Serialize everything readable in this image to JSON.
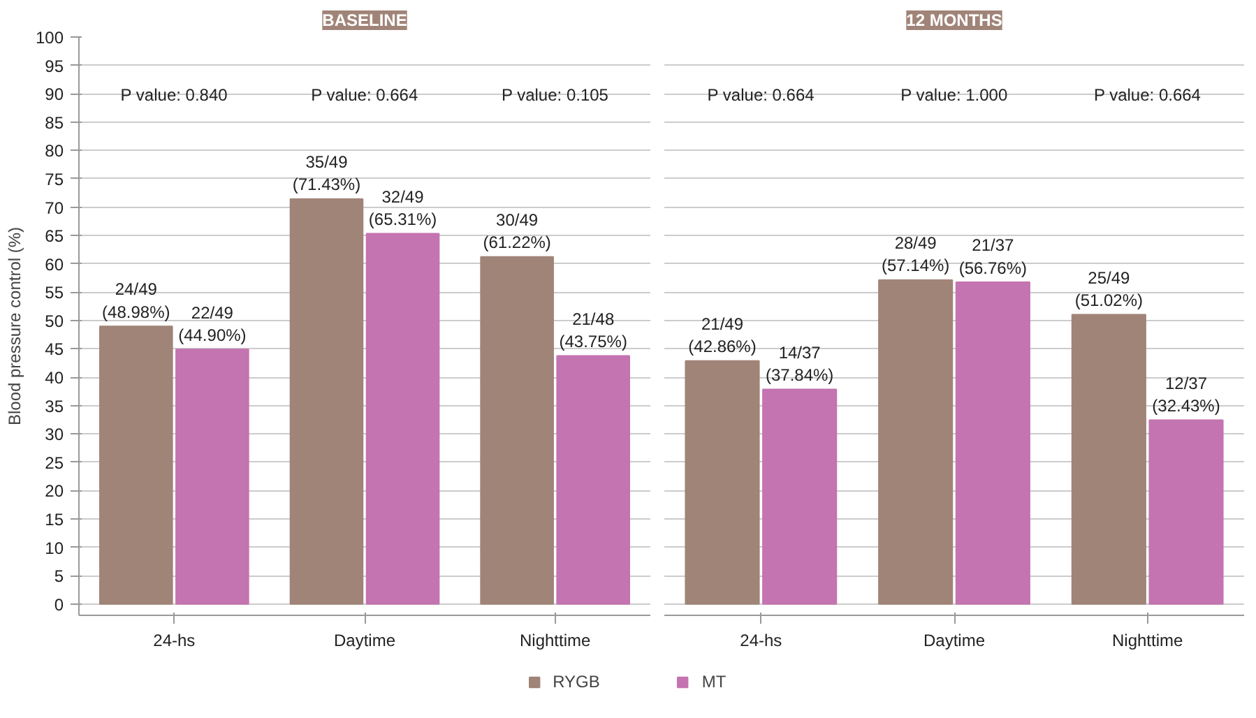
{
  "chart_data": [
    {
      "type": "bar",
      "title": "BASELINE",
      "ylabel": "Blood pressure control (%)",
      "categories": [
        "24-hs",
        "Daytime",
        "Nighttime"
      ],
      "series": [
        {
          "name": "RYGB",
          "color": "#a08478",
          "values": [
            48.98,
            71.43,
            61.22
          ],
          "value_labels": [
            "24/49\n(48.98%)",
            "35/49\n(71.43%)",
            "30/49\n(61.22%)"
          ]
        },
        {
          "name": "MT",
          "color": "#c474b0",
          "values": [
            44.9,
            65.31,
            43.75
          ],
          "value_labels": [
            "22/49\n(44.90%)",
            "32/49\n(65.31%)",
            "21/48\n(43.75%)"
          ]
        }
      ],
      "annotations": [
        "P value: 0.840",
        "P value: 0.664",
        "P value: 0.105"
      ],
      "ylim": [
        -2,
        100
      ],
      "yticks": [
        0,
        5,
        10,
        15,
        20,
        25,
        30,
        35,
        40,
        45,
        50,
        55,
        60,
        65,
        70,
        75,
        80,
        85,
        90,
        95,
        100
      ],
      "grid": "y",
      "legend": "bottom"
    },
    {
      "type": "bar",
      "title": "12 MONTHS",
      "categories": [
        "24-hs",
        "Daytime",
        "Nighttime"
      ],
      "series": [
        {
          "name": "RYGB",
          "color": "#a08478",
          "values": [
            42.86,
            57.14,
            51.02
          ],
          "value_labels": [
            "21/49\n(42.86%)",
            "28/49\n(57.14%)",
            "25/49\n(51.02%)"
          ]
        },
        {
          "name": "MT",
          "color": "#c474b0",
          "values": [
            37.84,
            56.76,
            32.43
          ],
          "value_labels": [
            "14/37\n(37.84%)",
            "21/37\n(56.76%)",
            "12/37\n(32.43%)"
          ]
        }
      ],
      "annotations": [
        "P value: 0.664",
        "P value: 1.000",
        "P value: 0.664"
      ],
      "ylim": [
        -2,
        100
      ],
      "yticks": [
        0,
        5,
        10,
        15,
        20,
        25,
        30,
        35,
        40,
        45,
        50,
        55,
        60,
        65,
        70,
        75,
        80,
        85,
        90,
        95,
        100
      ],
      "grid": "y",
      "tick_labels": "x"
    }
  ]
}
